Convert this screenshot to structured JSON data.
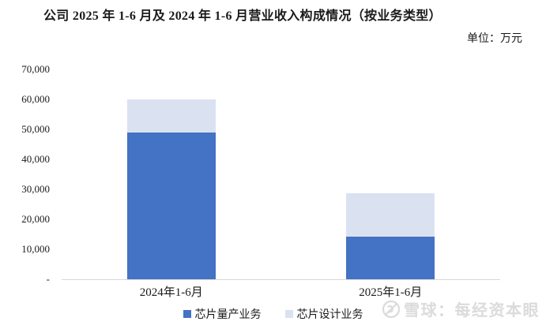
{
  "title": "公司 2025 年 1-6 月及 2024 年 1-6 月营业收入构成情况（按业务类型）",
  "unit_label": "单位：万元",
  "chart_data": {
    "type": "bar",
    "stacked": true,
    "title": "公司 2025 年 1-6 月及 2024 年 1-6 月营业收入构成情况（按业务类型）",
    "unit": "万元",
    "categories": [
      "2024年1-6月",
      "2025年1-6月"
    ],
    "series": [
      {
        "name": "芯片量产业务",
        "color": "#4472c4",
        "values": [
          49000,
          14300
        ]
      },
      {
        "name": "芯片设计业务",
        "color": "#dae2f1",
        "values": [
          11000,
          14400
        ]
      }
    ],
    "ylim": [
      0,
      70000
    ],
    "ytick_step": 10000,
    "ytick_labels": [
      "-",
      "10,000",
      "20,000",
      "30,000",
      "40,000",
      "50,000",
      "60,000",
      "70,000"
    ],
    "grid": false,
    "legend_position": "bottom",
    "axis_color": "#d9d9d9"
  },
  "watermark": {
    "icon": "xueqiu-logo",
    "text": "雪球：每经资本眼"
  }
}
